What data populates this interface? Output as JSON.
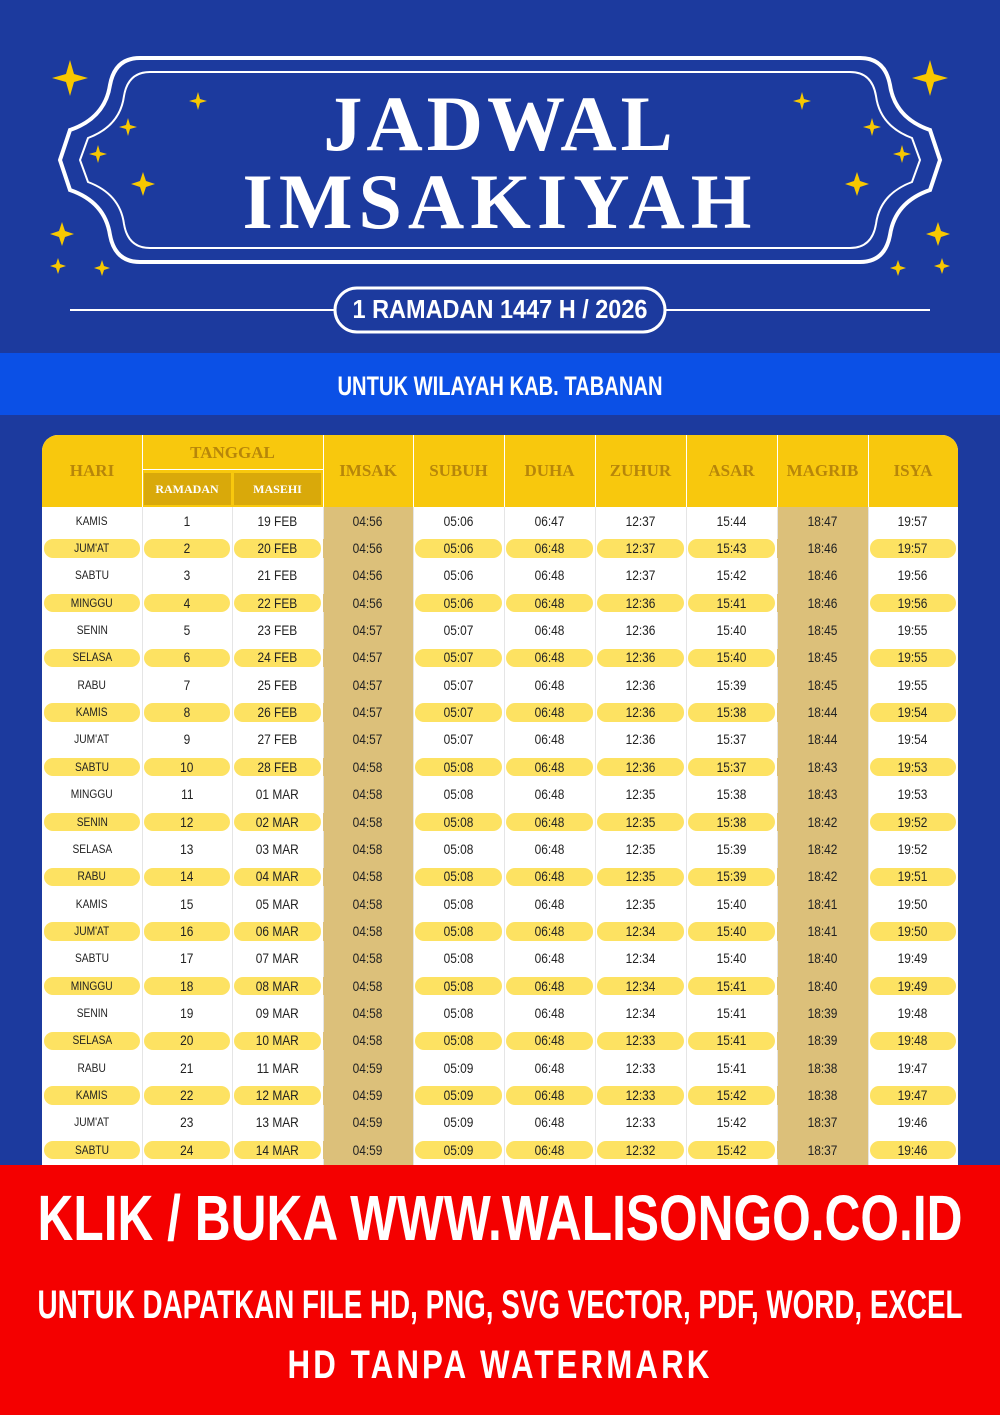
{
  "header": {
    "title_line1": "JADWAL",
    "title_line2": "IMSAKIYAH",
    "subtitle": "1 RAMADAN 1447 H / 2026",
    "region": "UNTUK WILAYAH KAB. TABANAN"
  },
  "table": {
    "headers": {
      "hari": "HARI",
      "tanggal": "TANGGAL",
      "ramadan": "RAMADAN",
      "masehi": "MASEHI",
      "imsak": "IMSAK",
      "subuh": "SUBUH",
      "duha": "DUHA",
      "zuhur": "ZUHUR",
      "asar": "ASAR",
      "magrib": "MAGRIB",
      "isya": "ISYA"
    },
    "rows": [
      [
        "KAMIS",
        "1",
        "19 FEB",
        "04:56",
        "05:06",
        "06:47",
        "12:37",
        "15:44",
        "18:47",
        "19:57"
      ],
      [
        "JUM'AT",
        "2",
        "20 FEB",
        "04:56",
        "05:06",
        "06:48",
        "12:37",
        "15:43",
        "18:46",
        "19:57"
      ],
      [
        "SABTU",
        "3",
        "21 FEB",
        "04:56",
        "05:06",
        "06:48",
        "12:37",
        "15:42",
        "18:46",
        "19:56"
      ],
      [
        "MINGGU",
        "4",
        "22 FEB",
        "04:56",
        "05:06",
        "06:48",
        "12:36",
        "15:41",
        "18:46",
        "19:56"
      ],
      [
        "SENIN",
        "5",
        "23 FEB",
        "04:57",
        "05:07",
        "06:48",
        "12:36",
        "15:40",
        "18:45",
        "19:55"
      ],
      [
        "SELASA",
        "6",
        "24 FEB",
        "04:57",
        "05:07",
        "06:48",
        "12:36",
        "15:40",
        "18:45",
        "19:55"
      ],
      [
        "RABU",
        "7",
        "25 FEB",
        "04:57",
        "05:07",
        "06:48",
        "12:36",
        "15:39",
        "18:45",
        "19:55"
      ],
      [
        "KAMIS",
        "8",
        "26 FEB",
        "04:57",
        "05:07",
        "06:48",
        "12:36",
        "15:38",
        "18:44",
        "19:54"
      ],
      [
        "JUM'AT",
        "9",
        "27 FEB",
        "04:57",
        "05:07",
        "06:48",
        "12:36",
        "15:37",
        "18:44",
        "19:54"
      ],
      [
        "SABTU",
        "10",
        "28 FEB",
        "04:58",
        "05:08",
        "06:48",
        "12:36",
        "15:37",
        "18:43",
        "19:53"
      ],
      [
        "MINGGU",
        "11",
        "01 MAR",
        "04:58",
        "05:08",
        "06:48",
        "12:35",
        "15:38",
        "18:43",
        "19:53"
      ],
      [
        "SENIN",
        "12",
        "02 MAR",
        "04:58",
        "05:08",
        "06:48",
        "12:35",
        "15:38",
        "18:42",
        "19:52"
      ],
      [
        "SELASA",
        "13",
        "03 MAR",
        "04:58",
        "05:08",
        "06:48",
        "12:35",
        "15:39",
        "18:42",
        "19:52"
      ],
      [
        "RABU",
        "14",
        "04 MAR",
        "04:58",
        "05:08",
        "06:48",
        "12:35",
        "15:39",
        "18:42",
        "19:51"
      ],
      [
        "KAMIS",
        "15",
        "05 MAR",
        "04:58",
        "05:08",
        "06:48",
        "12:35",
        "15:40",
        "18:41",
        "19:50"
      ],
      [
        "JUM'AT",
        "16",
        "06 MAR",
        "04:58",
        "05:08",
        "06:48",
        "12:34",
        "15:40",
        "18:41",
        "19:50"
      ],
      [
        "SABTU",
        "17",
        "07 MAR",
        "04:58",
        "05:08",
        "06:48",
        "12:34",
        "15:40",
        "18:40",
        "19:49"
      ],
      [
        "MINGGU",
        "18",
        "08 MAR",
        "04:58",
        "05:08",
        "06:48",
        "12:34",
        "15:41",
        "18:40",
        "19:49"
      ],
      [
        "SENIN",
        "19",
        "09 MAR",
        "04:58",
        "05:08",
        "06:48",
        "12:34",
        "15:41",
        "18:39",
        "19:48"
      ],
      [
        "SELASA",
        "20",
        "10 MAR",
        "04:58",
        "05:08",
        "06:48",
        "12:33",
        "15:41",
        "18:39",
        "19:48"
      ],
      [
        "RABU",
        "21",
        "11 MAR",
        "04:59",
        "05:09",
        "06:48",
        "12:33",
        "15:41",
        "18:38",
        "19:47"
      ],
      [
        "KAMIS",
        "22",
        "12 MAR",
        "04:59",
        "05:09",
        "06:48",
        "12:33",
        "15:42",
        "18:38",
        "19:47"
      ],
      [
        "JUM'AT",
        "23",
        "13 MAR",
        "04:59",
        "05:09",
        "06:48",
        "12:33",
        "15:42",
        "18:37",
        "19:46"
      ],
      [
        "SABTU",
        "24",
        "14 MAR",
        "04:59",
        "05:09",
        "06:48",
        "12:32",
        "15:42",
        "18:37",
        "19:46"
      ]
    ]
  },
  "footer": {
    "line1": "KLIK / BUKA WWW.WALISONGO.CO.ID",
    "line2": "UNTUK DAPATKAN FILE HD, PNG, SVG VECTOR, PDF, WORD, EXCEL",
    "line3": "HD TANPA WATERMARK"
  }
}
